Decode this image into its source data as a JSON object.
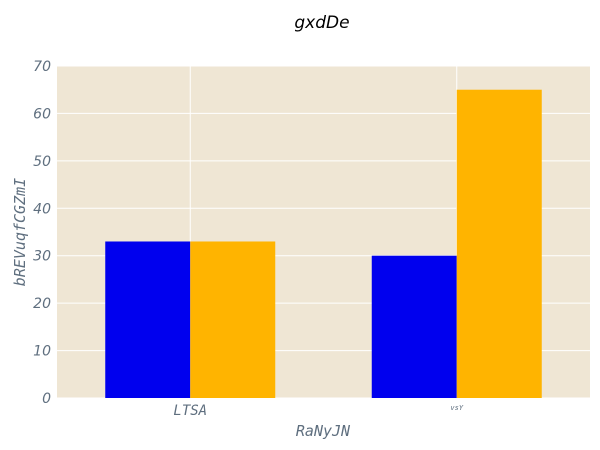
{
  "chart_data": {
    "type": "bar",
    "title": "gxdDe",
    "xlabel": "RaNyJN",
    "ylabel": "bREVuqfCGZmI",
    "categories": [
      "LTSA",
      "vsY"
    ],
    "series": [
      {
        "values": [
          33,
          30
        ],
        "color": "#0000ee"
      },
      {
        "values": [
          33,
          65
        ],
        "color": "#ffb400"
      }
    ],
    "ylim": [
      0,
      70
    ],
    "yticks": [
      0,
      10,
      20,
      30,
      40,
      50,
      60,
      70
    ],
    "grid": true,
    "background": "#efe6d4"
  }
}
